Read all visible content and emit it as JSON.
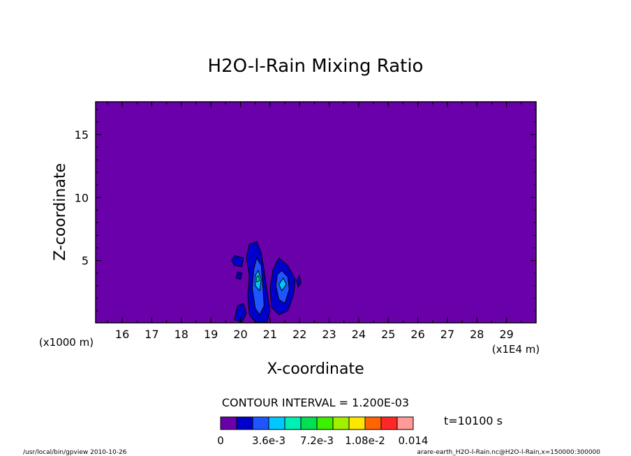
{
  "chart_data": {
    "type": "heatmap",
    "title": "H2O-l-Rain Mixing Ratio",
    "xlabel": "X-coordinate",
    "ylabel": "Z-coordinate",
    "x_unit": "(x1E4 m)",
    "y_unit": "(x1000 m)",
    "xlim": [
      15.1,
      30.0
    ],
    "ylim": [
      0.05,
      17.6
    ],
    "x_ticks": [
      16,
      17,
      18,
      19,
      20,
      21,
      22,
      23,
      24,
      25,
      26,
      27,
      28,
      29
    ],
    "y_ticks": [
      5,
      10,
      15
    ],
    "background_color": "#6a00aa",
    "contour_interval": "CONTOUR INTERVAL = 1.200E-03",
    "time_label": "t=10100 s",
    "colorbar": {
      "colors": [
        "#6a00aa",
        "#0000cc",
        "#1e55ff",
        "#00c8ff",
        "#00f0b4",
        "#00e050",
        "#3cf000",
        "#a0f000",
        "#ffe600",
        "#ff6400",
        "#ff2828",
        "#ff9a9a"
      ],
      "tick_labels": [
        "0",
        "3.6e-3",
        "7.2e-3",
        "1.08e-2",
        "0.014"
      ]
    },
    "cells": [
      {
        "level": 1,
        "points": [
          [
            20.3,
            6.3
          ],
          [
            20.55,
            6.5
          ],
          [
            20.7,
            5.6
          ],
          [
            20.8,
            4.2
          ],
          [
            20.9,
            2.5
          ],
          [
            21.0,
            1.0
          ],
          [
            20.9,
            0.1
          ],
          [
            20.5,
            0.1
          ],
          [
            20.3,
            0.7
          ],
          [
            20.25,
            2.2
          ],
          [
            20.3,
            3.8
          ],
          [
            20.2,
            5.2
          ]
        ]
      },
      {
        "level": 1,
        "points": [
          [
            21.3,
            5.2
          ],
          [
            21.6,
            4.6
          ],
          [
            21.85,
            3.5
          ],
          [
            21.8,
            2.3
          ],
          [
            21.6,
            1.0
          ],
          [
            21.3,
            0.7
          ],
          [
            21.05,
            1.3
          ],
          [
            21.0,
            2.8
          ],
          [
            21.1,
            4.3
          ]
        ]
      },
      {
        "level": 1,
        "points": [
          [
            19.8,
            5.4
          ],
          [
            20.1,
            5.2
          ],
          [
            20.05,
            4.5
          ],
          [
            19.8,
            4.6
          ],
          [
            19.7,
            5.0
          ]
        ]
      },
      {
        "level": 1,
        "points": [
          [
            19.9,
            4.1
          ],
          [
            20.05,
            4.0
          ],
          [
            20.0,
            3.5
          ],
          [
            19.85,
            3.6
          ]
        ]
      },
      {
        "level": 1,
        "points": [
          [
            22.0,
            3.8
          ],
          [
            22.05,
            3.2
          ],
          [
            21.95,
            2.9
          ],
          [
            21.9,
            3.4
          ]
        ]
      },
      {
        "level": 1,
        "points": [
          [
            19.9,
            1.4
          ],
          [
            20.1,
            1.6
          ],
          [
            20.2,
            0.8
          ],
          [
            20.05,
            0.1
          ],
          [
            19.8,
            0.3
          ]
        ]
      },
      {
        "level": 2,
        "points": [
          [
            20.55,
            5.2
          ],
          [
            20.7,
            4.6
          ],
          [
            20.75,
            3.2
          ],
          [
            20.8,
            1.4
          ],
          [
            20.65,
            0.7
          ],
          [
            20.5,
            1.2
          ],
          [
            20.4,
            2.8
          ],
          [
            20.45,
            4.3
          ]
        ]
      },
      {
        "level": 2,
        "points": [
          [
            21.4,
            4.2
          ],
          [
            21.6,
            3.7
          ],
          [
            21.65,
            2.7
          ],
          [
            21.5,
            1.6
          ],
          [
            21.3,
            1.9
          ],
          [
            21.2,
            3.0
          ],
          [
            21.25,
            3.9
          ]
        ]
      },
      {
        "level": 3,
        "points": [
          [
            20.6,
            4.2
          ],
          [
            20.7,
            3.5
          ],
          [
            20.65,
            2.6
          ],
          [
            20.5,
            3.0
          ],
          [
            20.5,
            3.8
          ]
        ]
      },
      {
        "level": 3,
        "points": [
          [
            21.45,
            3.6
          ],
          [
            21.55,
            3.1
          ],
          [
            21.4,
            2.6
          ],
          [
            21.3,
            3.1
          ]
        ]
      },
      {
        "level": 4,
        "points": [
          [
            20.6,
            3.8
          ],
          [
            20.65,
            3.4
          ],
          [
            20.55,
            3.3
          ],
          [
            20.55,
            3.7
          ]
        ]
      }
    ]
  },
  "footer": {
    "left": "/usr/local/bin/gpview  2010-10-26",
    "right": "arare-earth_H2O-l-Rain.nc@H2O-l-Rain,x=150000:300000"
  }
}
